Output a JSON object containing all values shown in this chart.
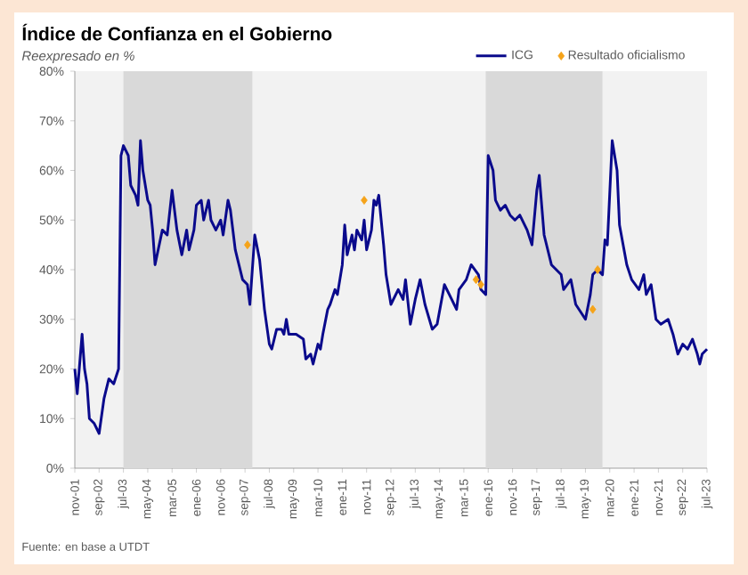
{
  "chart_data": {
    "type": "line",
    "title": "Índice de Confianza en el Gobierno",
    "subtitle": "Reexpresado en %",
    "annotations": [
      "Fuente: en base a UTDT"
    ],
    "legend": "top right",
    "xlim": [
      "2001-11",
      "2023-07"
    ],
    "xticks": [
      {
        "value": "2001-11",
        "label": "nov-01"
      },
      {
        "value": "2002-09",
        "label": "sep-02"
      },
      {
        "value": "2003-07",
        "label": "jul-03"
      },
      {
        "value": "2004-05",
        "label": "may-04"
      },
      {
        "value": "2005-03",
        "label": "mar-05"
      },
      {
        "value": "2006-01",
        "label": "ene-06"
      },
      {
        "value": "2006-11",
        "label": "nov-06"
      },
      {
        "value": "2007-09",
        "label": "sep-07"
      },
      {
        "value": "2008-07",
        "label": "jul-08"
      },
      {
        "value": "2009-05",
        "label": "may-09"
      },
      {
        "value": "2010-03",
        "label": "mar-10"
      },
      {
        "value": "2011-01",
        "label": "ene-11"
      },
      {
        "value": "2011-11",
        "label": "nov-11"
      },
      {
        "value": "2012-09",
        "label": "sep-12"
      },
      {
        "value": "2013-07",
        "label": "jul-13"
      },
      {
        "value": "2014-05",
        "label": "may-14"
      },
      {
        "value": "2015-03",
        "label": "mar-15"
      },
      {
        "value": "2016-01",
        "label": "ene-16"
      },
      {
        "value": "2016-11",
        "label": "nov-16"
      },
      {
        "value": "2017-09",
        "label": "sep-17"
      },
      {
        "value": "2018-07",
        "label": "jul-18"
      },
      {
        "value": "2019-05",
        "label": "may-19"
      },
      {
        "value": "2020-03",
        "label": "mar-20"
      },
      {
        "value": "2021-01",
        "label": "ene-21"
      },
      {
        "value": "2021-11",
        "label": "nov-21"
      },
      {
        "value": "2022-09",
        "label": "sep-22"
      },
      {
        "value": "2023-07",
        "label": "jul-23"
      }
    ],
    "ylim": [
      0,
      80
    ],
    "yticks": [
      {
        "value": 0,
        "label": "0%"
      },
      {
        "value": 10,
        "label": "10%"
      },
      {
        "value": 20,
        "label": "20%"
      },
      {
        "value": 30,
        "label": "30%"
      },
      {
        "value": 40,
        "label": "40%"
      },
      {
        "value": 50,
        "label": "50%"
      },
      {
        "value": 60,
        "label": "60%"
      },
      {
        "value": 70,
        "label": "70%"
      },
      {
        "value": 80,
        "label": "80%"
      }
    ],
    "bands": [
      {
        "axis": "x",
        "from": "2003-07",
        "to": "2007-12",
        "color": "#d9d9d9"
      },
      {
        "axis": "x",
        "from": "2015-12",
        "to": "2019-12",
        "color": "#d9d9d9"
      }
    ],
    "series": [
      {
        "name": "ICG",
        "color": "#0a0a8c",
        "x": [
          "2001-11",
          "2001-12",
          "2002-02",
          "2002-03",
          "2002-04",
          "2002-05",
          "2002-07",
          "2002-09",
          "2002-11",
          "2003-01",
          "2003-03",
          "2003-05",
          "2003-06",
          "2003-07",
          "2003-09",
          "2003-10",
          "2003-12",
          "2004-01",
          "2004-02",
          "2004-03",
          "2004-05",
          "2004-06",
          "2004-07",
          "2004-08",
          "2004-11",
          "2005-01",
          "2005-03",
          "2005-05",
          "2005-07",
          "2005-09",
          "2005-10",
          "2005-12",
          "2006-01",
          "2006-03",
          "2006-04",
          "2006-06",
          "2006-07",
          "2006-09",
          "2006-11",
          "2006-12",
          "2007-02",
          "2007-03",
          "2007-05",
          "2007-06",
          "2007-08",
          "2007-10",
          "2007-11",
          "2007-12",
          "2008-01",
          "2008-03",
          "2008-04",
          "2008-05",
          "2008-07",
          "2008-08",
          "2008-10",
          "2008-12",
          "2009-01",
          "2009-02",
          "2009-03",
          "2009-06",
          "2009-09",
          "2009-10",
          "2009-12",
          "2010-01",
          "2010-03",
          "2010-04",
          "2010-05",
          "2010-07",
          "2010-08",
          "2010-10",
          "2010-11",
          "2011-01",
          "2011-02",
          "2011-03",
          "2011-05",
          "2011-06",
          "2011-07",
          "2011-09",
          "2011-10",
          "2011-11",
          "2012-01",
          "2012-02",
          "2012-03",
          "2012-04",
          "2012-05",
          "2012-06",
          "2012-07",
          "2012-08",
          "2012-09",
          "2012-12",
          "2013-02",
          "2013-03",
          "2013-05",
          "2013-07",
          "2013-09",
          "2013-11",
          "2014-02",
          "2014-04",
          "2014-07",
          "2014-10",
          "2014-12",
          "2015-01",
          "2015-04",
          "2015-06",
          "2015-09",
          "2015-10",
          "2015-12",
          "2016-01",
          "2016-03",
          "2016-04",
          "2016-06",
          "2016-08",
          "2016-10",
          "2016-12",
          "2017-02",
          "2017-05",
          "2017-07",
          "2017-09",
          "2017-10",
          "2017-12",
          "2018-03",
          "2018-07",
          "2018-08",
          "2018-11",
          "2019-01",
          "2019-05",
          "2019-07",
          "2019-08",
          "2019-10",
          "2019-12",
          "2020-01",
          "2020-02",
          "2020-04",
          "2020-06",
          "2020-07",
          "2020-10",
          "2020-12",
          "2021-03",
          "2021-05",
          "2021-06",
          "2021-08",
          "2021-10",
          "2021-12",
          "2022-03",
          "2022-05",
          "2022-07",
          "2022-09",
          "2022-11",
          "2023-01",
          "2023-03",
          "2023-04",
          "2023-05",
          "2023-07"
        ],
        "values": [
          20,
          15,
          27,
          20,
          17,
          10,
          9,
          7,
          14,
          18,
          17,
          20,
          63,
          65,
          63,
          57,
          55,
          53,
          66,
          60,
          54,
          53,
          48,
          41,
          48,
          47,
          56,
          48,
          43,
          48,
          44,
          48,
          53,
          54,
          50,
          54,
          50,
          48,
          50,
          47,
          54,
          52,
          44,
          42,
          38,
          37,
          33,
          40,
          47,
          42,
          37,
          32,
          25,
          24,
          28,
          28,
          27,
          30,
          27,
          27,
          26,
          22,
          23,
          21,
          25,
          24,
          27,
          32,
          33,
          36,
          35,
          41,
          49,
          43,
          47,
          44,
          48,
          46,
          50,
          44,
          48,
          54,
          53,
          55,
          50,
          45,
          39,
          36,
          33,
          36,
          34,
          38,
          29,
          34,
          38,
          33,
          28,
          29,
          37,
          34,
          32,
          36,
          38,
          41,
          39,
          36,
          35,
          63,
          60,
          54,
          52,
          53,
          51,
          50,
          51,
          48,
          45,
          56,
          59,
          47,
          41,
          39,
          36,
          38,
          33,
          30,
          35,
          39,
          40,
          39,
          46,
          45,
          66,
          60,
          49,
          41,
          38,
          36,
          39,
          35,
          37,
          30,
          29,
          30,
          27,
          23,
          25,
          24,
          26,
          23,
          21,
          23,
          24
        ]
      },
      {
        "name": "Resultado oficialismo",
        "type": "scatter",
        "marker": "diamond",
        "color": "#f5a31a",
        "x": [
          "2007-10",
          "2011-10",
          "2015-08",
          "2015-10",
          "2019-08",
          "2019-10"
        ],
        "values": [
          45,
          54,
          38,
          37,
          32,
          40
        ]
      }
    ]
  }
}
